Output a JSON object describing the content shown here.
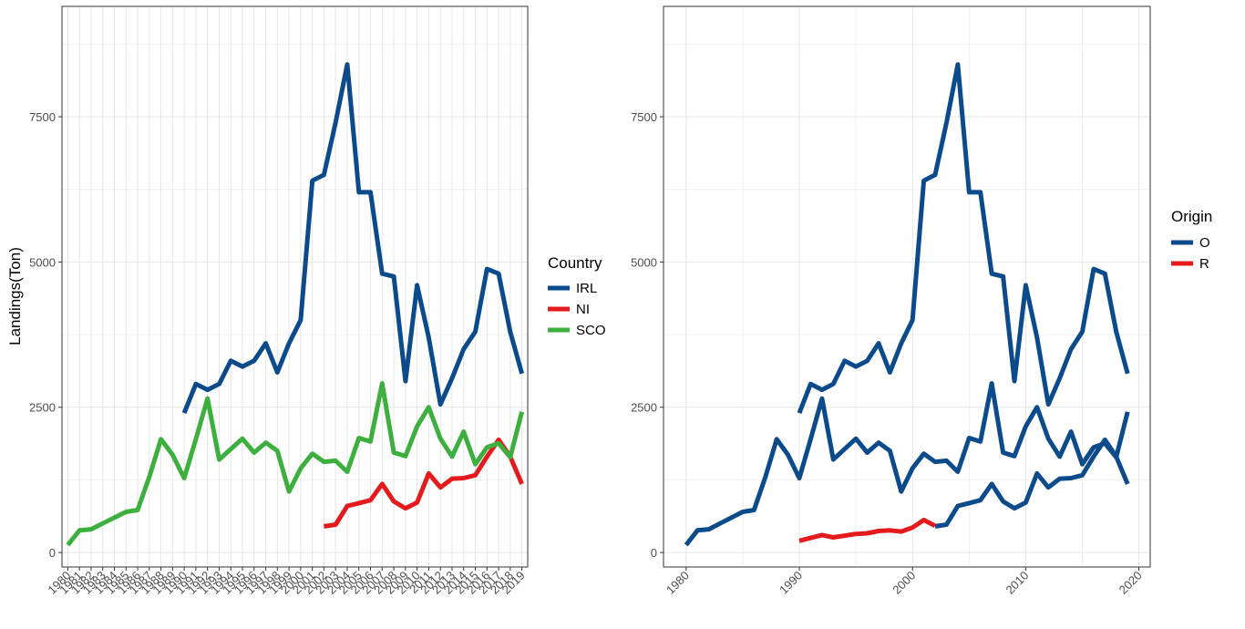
{
  "chart_data": [
    {
      "type": "line",
      "title": "",
      "xlabel": "",
      "ylabel": "Landings(Ton)",
      "ylim": [
        -250,
        9400
      ],
      "xlim": [
        1979.5,
        2019.5
      ],
      "yticks": [
        0,
        2500,
        5000,
        7500
      ],
      "x_tick_labels": [
        "1980",
        "1981",
        "1982",
        "1983",
        "1984",
        "1985",
        "1986",
        "1987",
        "1988",
        "1989",
        "1990",
        "1991",
        "1992",
        "1993",
        "1994",
        "1995",
        "1996",
        "1997",
        "1998",
        "1999",
        "2000",
        "2001",
        "2002",
        "2003",
        "2004",
        "2005",
        "2006",
        "2007",
        "2008",
        "2009",
        "2010",
        "2011",
        "2012",
        "2013",
        "2014",
        "2015",
        "2016",
        "2017",
        "2018",
        "2019"
      ],
      "x_tick_rotation": 45,
      "grid": true,
      "legend": {
        "title": "Country",
        "placement": "right"
      },
      "series": [
        {
          "name": "IRL",
          "color": "#0b4a8b",
          "x": [
            1990,
            1991,
            1992,
            1993,
            1994,
            1995,
            1996,
            1997,
            1998,
            1999,
            2000,
            2001,
            2002,
            2003,
            2004,
            2005,
            2006,
            2007,
            2008,
            2009,
            2010,
            2011,
            2012,
            2013,
            2014,
            2015,
            2016,
            2017,
            2018,
            2019
          ],
          "y": [
            2400,
            2900,
            2800,
            2900,
            3300,
            3200,
            3300,
            3600,
            3100,
            3600,
            4000,
            6400,
            6500,
            7400,
            8400,
            6200,
            6200,
            4800,
            4750,
            2950,
            4600,
            3700,
            2550,
            3000,
            3500,
            3800,
            4880,
            4800,
            3800,
            3080
          ]
        },
        {
          "name": "NI",
          "color": "#e41a1c",
          "x": [
            2002,
            2003,
            2004,
            2005,
            2006,
            2007,
            2008,
            2009,
            2010,
            2011,
            2012,
            2013,
            2014,
            2015,
            2016,
            2017,
            2018,
            2019
          ],
          "y": [
            450,
            480,
            800,
            850,
            900,
            1180,
            880,
            760,
            860,
            1360,
            1120,
            1270,
            1280,
            1330,
            1650,
            1940,
            1650,
            1180
          ]
        },
        {
          "name": "SCO",
          "color": "#3daf3f",
          "x": [
            1980,
            1981,
            1982,
            1983,
            1984,
            1985,
            1986,
            1987,
            1988,
            1989,
            1990,
            1991,
            1992,
            1993,
            1994,
            1995,
            1996,
            1997,
            1998,
            1999,
            2000,
            2001,
            2002,
            2003,
            2004,
            2005,
            2006,
            2007,
            2008,
            2009,
            2010,
            2011,
            2012,
            2013,
            2014,
            2015,
            2016,
            2017,
            2018,
            2019
          ],
          "y": [
            130,
            380,
            400,
            500,
            600,
            700,
            730,
            1300,
            1950,
            1680,
            1280,
            1950,
            2650,
            1600,
            1780,
            1960,
            1720,
            1890,
            1750,
            1050,
            1450,
            1700,
            1560,
            1580,
            1390,
            1970,
            1910,
            2910,
            1720,
            1660,
            2170,
            2500,
            1960,
            1650,
            2080,
            1520,
            1810,
            1880,
            1640,
            2420
          ]
        }
      ]
    },
    {
      "type": "line",
      "title": "",
      "xlabel": "",
      "ylabel": "",
      "ylim": [
        -250,
        9400
      ],
      "xlim": [
        1978,
        2021
      ],
      "yticks": [
        0,
        2500,
        5000,
        7500
      ],
      "xticks": [
        1980,
        1990,
        2000,
        2010,
        2020
      ],
      "x_tick_rotation": 45,
      "grid": true,
      "legend": {
        "title": "Origin",
        "placement": "right"
      },
      "series": [
        {
          "name": "O",
          "color": "#0b4a8b",
          "x": [
            1990,
            1991,
            1992,
            1993,
            1994,
            1995,
            1996,
            1997,
            1998,
            1999,
            2000,
            2001,
            2002,
            2003,
            2004,
            2005,
            2006,
            2007,
            2008,
            2009,
            2010,
            2011,
            2012,
            2013,
            2014,
            2015,
            2016,
            2017,
            2018,
            2019
          ],
          "y": [
            2400,
            2900,
            2800,
            2900,
            3300,
            3200,
            3300,
            3600,
            3100,
            3600,
            4000,
            6400,
            6500,
            7400,
            8400,
            6200,
            6200,
            4800,
            4750,
            2950,
            4600,
            3700,
            2550,
            3000,
            3500,
            3800,
            4880,
            4800,
            3800,
            3080
          ]
        },
        {
          "name": "O",
          "color": "#0b4a8b",
          "x": [
            1980,
            1981,
            1982,
            1983,
            1984,
            1985,
            1986,
            1987,
            1988,
            1989,
            1990,
            1991,
            1992,
            1993,
            1994,
            1995,
            1996,
            1997,
            1998,
            1999,
            2000,
            2001,
            2002,
            2003,
            2004,
            2005,
            2006,
            2007,
            2008,
            2009,
            2010,
            2011,
            2012,
            2013,
            2014,
            2015,
            2016,
            2017,
            2018,
            2019
          ],
          "y": [
            130,
            380,
            400,
            500,
            600,
            700,
            730,
            1300,
            1950,
            1680,
            1280,
            1950,
            2650,
            1600,
            1780,
            1960,
            1720,
            1890,
            1750,
            1050,
            1450,
            1700,
            1560,
            1580,
            1390,
            1970,
            1910,
            2910,
            1720,
            1660,
            2170,
            2500,
            1960,
            1650,
            2080,
            1520,
            1810,
            1880,
            1640,
            2420
          ]
        },
        {
          "name": "O",
          "color": "#0b4a8b",
          "x": [
            2002,
            2003,
            2004,
            2005,
            2006,
            2007,
            2008,
            2009,
            2010,
            2011,
            2012,
            2013,
            2014,
            2015,
            2016,
            2017,
            2018,
            2019
          ],
          "y": [
            450,
            480,
            800,
            850,
            900,
            1180,
            880,
            760,
            860,
            1360,
            1120,
            1270,
            1280,
            1330,
            1650,
            1940,
            1650,
            1180
          ]
        },
        {
          "name": "R",
          "color": "#e41a1c",
          "x": [
            1990,
            1991,
            1992,
            1993,
            1994,
            1995,
            1996,
            1997,
            1998,
            1999,
            2000,
            2001,
            2002
          ],
          "y": [
            200,
            250,
            300,
            260,
            290,
            320,
            330,
            370,
            380,
            360,
            430,
            560,
            460
          ]
        }
      ]
    }
  ]
}
